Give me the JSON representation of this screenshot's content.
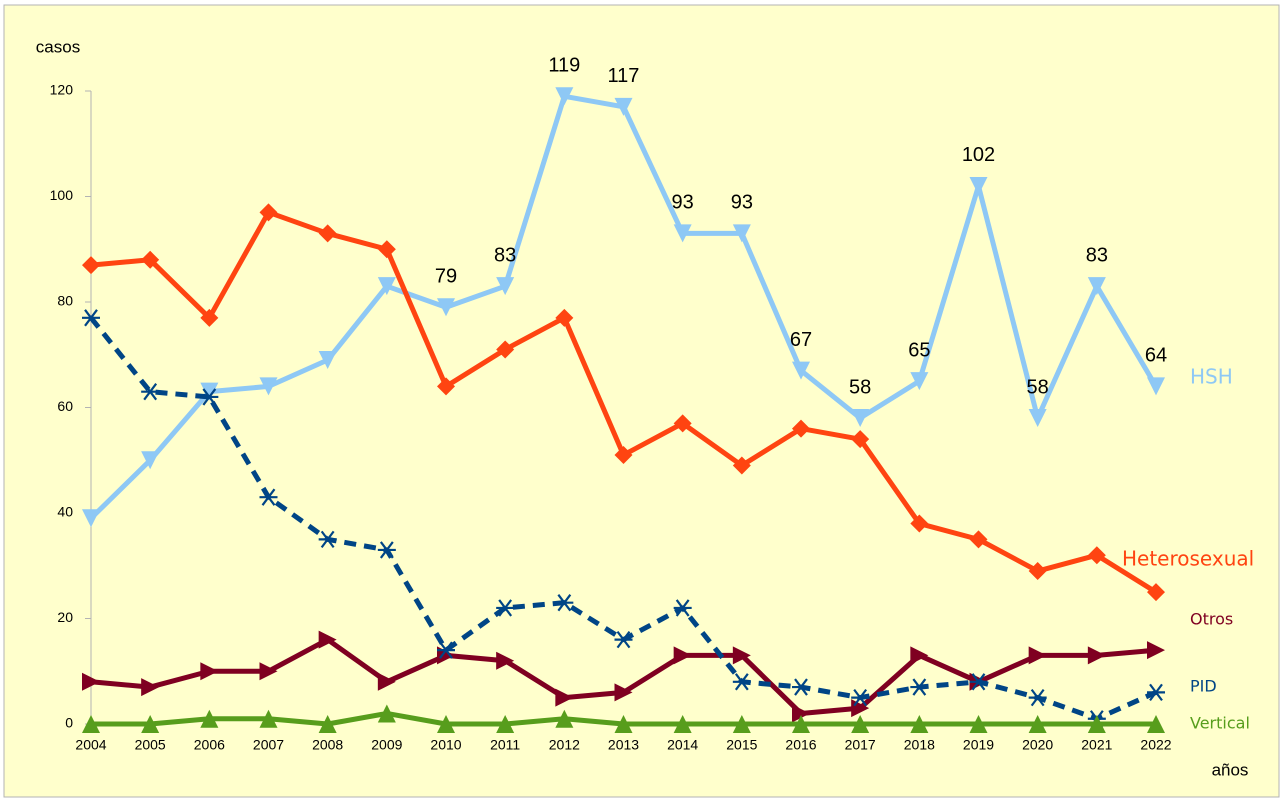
{
  "chart_data": {
    "type": "line",
    "y_label": "casos",
    "x_label": "años",
    "categories": [
      "2004",
      "2005",
      "2006",
      "2007",
      "2008",
      "2009",
      "2010",
      "2011",
      "2012",
      "2013",
      "2014",
      "2015",
      "2016",
      "2017",
      "2018",
      "2019",
      "2020",
      "2021",
      "2022"
    ],
    "ylim": [
      0,
      120
    ],
    "yticks": [
      0,
      20,
      40,
      60,
      80,
      100,
      120
    ],
    "series": [
      {
        "name": "HSH",
        "color": "#8ec8f5",
        "marker": "triangle-down",
        "values": [
          39,
          50,
          63,
          64,
          69,
          83,
          79,
          83,
          119,
          117,
          93,
          93,
          67,
          58,
          65,
          102,
          58,
          83,
          64
        ],
        "value_labels": [
          null,
          null,
          null,
          null,
          null,
          null,
          79,
          83,
          119,
          117,
          93,
          93,
          67,
          58,
          65,
          102,
          58,
          83,
          64
        ]
      },
      {
        "name": "Heterosexual",
        "color": "#ff4411",
        "marker": "diamond",
        "values": [
          87,
          88,
          77,
          97,
          93,
          90,
          64,
          71,
          77,
          51,
          57,
          49,
          56,
          54,
          38,
          35,
          29,
          32,
          25
        ]
      },
      {
        "name": "Otros",
        "color": "#7f0021",
        "marker": "triangle-right",
        "values": [
          8,
          7,
          10,
          10,
          16,
          8,
          13,
          12,
          5,
          6,
          13,
          13,
          2,
          3,
          13,
          8,
          13,
          13,
          14
        ]
      },
      {
        "name": "PID",
        "color": "#004586",
        "marker": "asterisk",
        "dashed": true,
        "values": [
          77,
          63,
          62,
          43,
          35,
          33,
          14,
          22,
          23,
          16,
          22,
          8,
          7,
          5,
          7,
          8,
          5,
          1,
          6
        ]
      },
      {
        "name": "Vertical",
        "color": "#579d1c",
        "marker": "triangle-up",
        "values": [
          0,
          0,
          1,
          1,
          0,
          2,
          0,
          0,
          1,
          0,
          0,
          0,
          0,
          0,
          0,
          0,
          0,
          0,
          0
        ]
      }
    ]
  }
}
